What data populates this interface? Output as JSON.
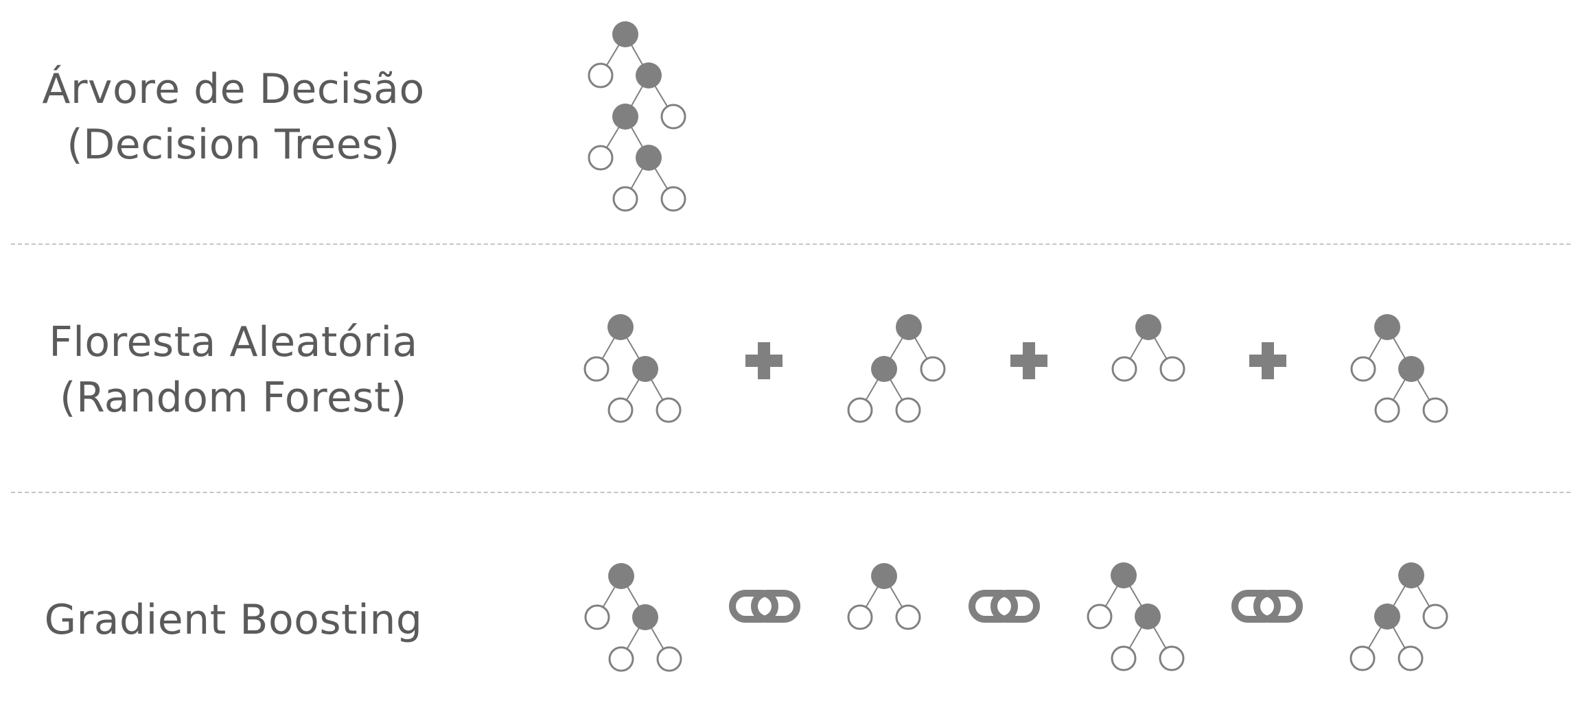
{
  "rows": [
    {
      "title_line1": "Árvore de Decisão",
      "title_line2": "(Decision Trees)"
    },
    {
      "title_line1": "Floresta Aleatória",
      "title_line2": "(Random Forest)"
    },
    {
      "title_line1": "Gradient Boosting",
      "title_line2": ""
    }
  ],
  "colors": {
    "node_fill": "#808080",
    "node_stroke": "#808080",
    "text": "#5b5b5b",
    "separator": "#c4c4c4"
  },
  "icons": {
    "random_forest_operator": "plus-icon",
    "gradient_boosting_operator": "chain-link-icon"
  }
}
